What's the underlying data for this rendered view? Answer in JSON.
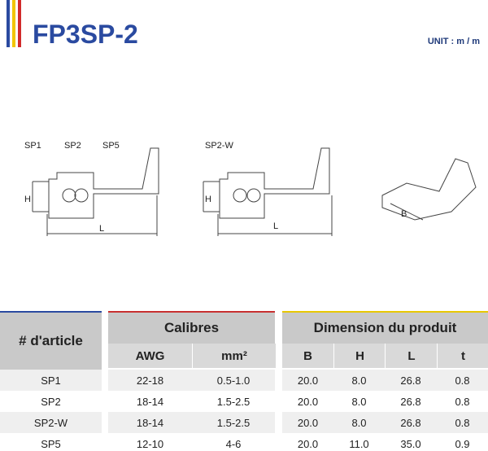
{
  "header": {
    "title": "FP3SP-2",
    "unit": "UNIT : m / m"
  },
  "drawings": {
    "group1": [
      "SP1",
      "SP2",
      "SP5"
    ],
    "group2": [
      "SP2-W"
    ],
    "dim_h": "H",
    "dim_l": "L",
    "dim_b": "B"
  },
  "table": {
    "groups": [
      "# d'article",
      "Calibres",
      "Dimension du produit"
    ],
    "columns": [
      "AWG",
      "mm²",
      "B",
      "H",
      "L",
      "t"
    ],
    "rows": [
      [
        "SP1",
        "22-18",
        "0.5-1.0",
        "20.0",
        "8.0",
        "26.8",
        "0.8"
      ],
      [
        "SP2",
        "18-14",
        "1.5-2.5",
        "20.0",
        "8.0",
        "26.8",
        "0.8"
      ],
      [
        "SP2-W",
        "18-14",
        "1.5-2.5",
        "20.0",
        "8.0",
        "26.8",
        "0.8"
      ],
      [
        "SP5",
        "12-10",
        "4-6",
        "20.0",
        "11.0",
        "35.0",
        "0.9"
      ]
    ]
  }
}
